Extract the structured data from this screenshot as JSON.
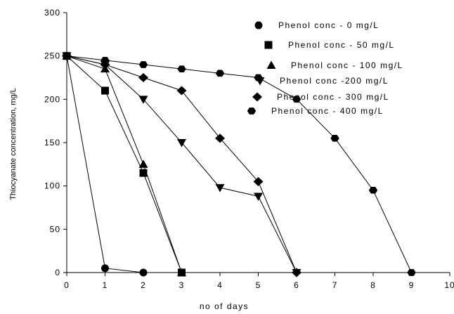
{
  "chart_data": {
    "type": "line",
    "title": "",
    "xlabel": "no of days",
    "ylabel": "Thiocyanate concentration, mg/L",
    "xlim": [
      0,
      10
    ],
    "ylim": [
      0,
      300
    ],
    "xticks": [
      0,
      1,
      2,
      3,
      4,
      5,
      6,
      7,
      8,
      9,
      10
    ],
    "yticks": [
      0,
      50,
      100,
      150,
      200,
      250,
      300
    ],
    "xtick_labels": [
      "0",
      "1",
      "2",
      "3",
      "4",
      "5",
      "6",
      "7",
      "8",
      "9",
      "10"
    ],
    "ytick_labels": [
      "0",
      "50",
      "100",
      "150",
      "200",
      "250",
      "300"
    ],
    "grid": false,
    "legend_position": "top-right",
    "series": [
      {
        "name": "Phenol conc - 0 mg/L",
        "marker": "circle",
        "x": [
          0,
          1,
          2
        ],
        "y": [
          250,
          5,
          0
        ]
      },
      {
        "name": "Phenol conc - 50 mg/L",
        "marker": "square",
        "x": [
          0,
          1,
          2,
          3
        ],
        "y": [
          250,
          210,
          115,
          0
        ]
      },
      {
        "name": "Phenol conc - 100 mg/L",
        "marker": "triangle-up",
        "x": [
          0,
          1,
          2,
          3
        ],
        "y": [
          250,
          235,
          125,
          0
        ]
      },
      {
        "name": "Phenol conc -200 mg/L",
        "marker": "triangle-down",
        "x": [
          0,
          1,
          2,
          3,
          4,
          5,
          6
        ],
        "y": [
          250,
          240,
          200,
          150,
          98,
          88,
          0
        ]
      },
      {
        "name": "Phenol conc - 300 mg/L",
        "marker": "diamond",
        "x": [
          0,
          1,
          2,
          3,
          4,
          5,
          6
        ],
        "y": [
          250,
          240,
          225,
          210,
          155,
          105,
          0
        ]
      },
      {
        "name": "Phenol conc - 400 mg/L",
        "marker": "hexagon",
        "x": [
          0,
          1,
          2,
          3,
          4,
          5,
          6,
          7,
          8,
          9
        ],
        "y": [
          250,
          245,
          240,
          235,
          230,
          225,
          200,
          155,
          95,
          0
        ]
      }
    ],
    "colors": {
      "line": "#000000",
      "marker": "#000000",
      "axis": "#000000"
    }
  }
}
